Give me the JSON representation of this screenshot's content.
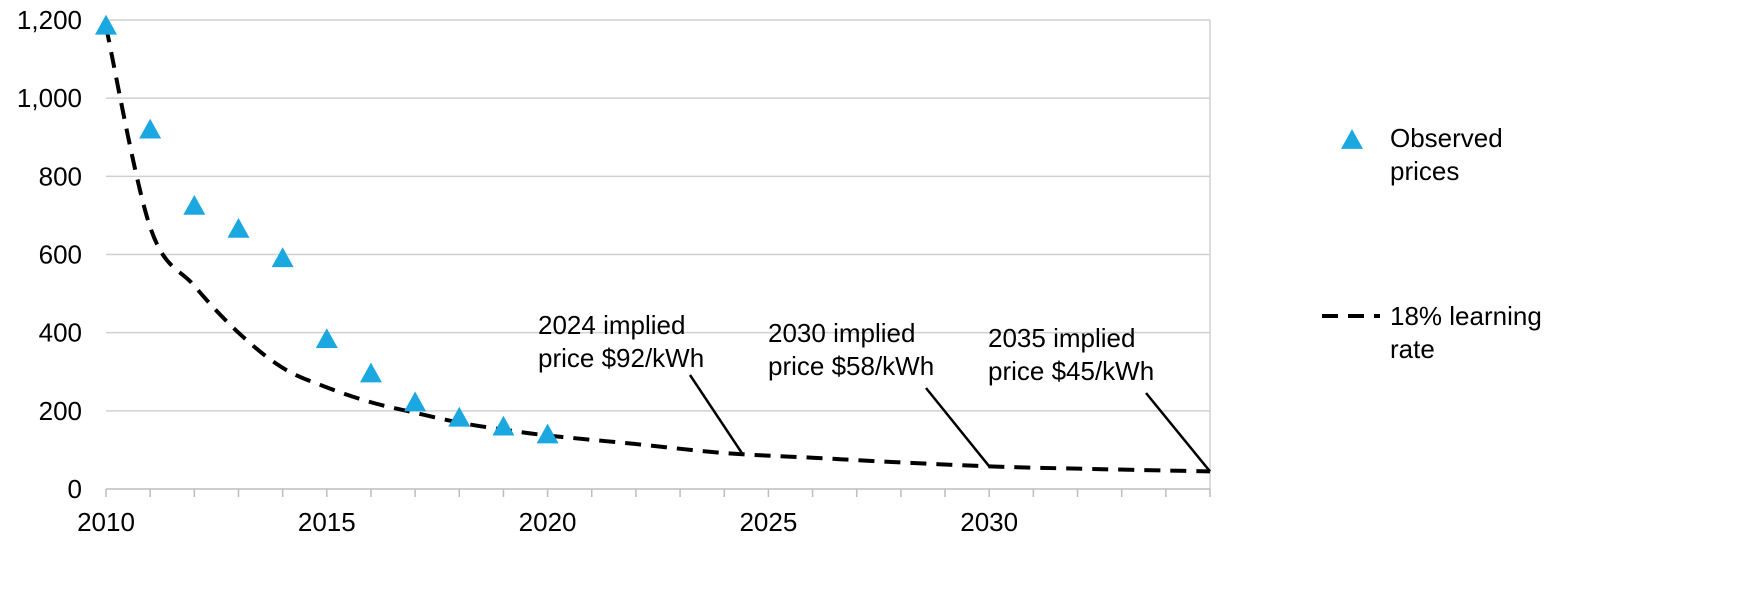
{
  "chart_data": {
    "type": "scatter",
    "xlim": [
      2010,
      2035
    ],
    "ylim": [
      0,
      1200
    ],
    "x_ticks": [
      2010,
      2015,
      2020,
      2025,
      2030
    ],
    "x_tick_labels": [
      "2010",
      "2015",
      "2020",
      "2025",
      "2030"
    ],
    "y_ticks": [
      0,
      200,
      400,
      600,
      800,
      1000,
      1200
    ],
    "y_tick_labels": [
      "0",
      "200",
      "400",
      "600",
      "800",
      "1,000",
      "1,200"
    ],
    "grid": "horizontal",
    "legend_placement": "right",
    "series": [
      {
        "name": "Observed prices",
        "legend_lines": [
          "Observed",
          "prices"
        ],
        "marker": "triangle",
        "color": "#1ba8e0",
        "x": [
          2010,
          2011,
          2012,
          2013,
          2014,
          2015,
          2016,
          2017,
          2018,
          2019,
          2020
        ],
        "y": [
          1183,
          917,
          722,
          663,
          588,
          381,
          293,
          219,
          180,
          157,
          137
        ]
      },
      {
        "name": "18% learning rate",
        "legend_lines": [
          "18% learning",
          "rate"
        ],
        "line_style": "dashed",
        "color": "#000000",
        "x": [
          2010,
          2011,
          2012,
          2013,
          2014,
          2015,
          2016,
          2017,
          2018,
          2019,
          2020,
          2022,
          2024,
          2026,
          2028,
          2030,
          2032,
          2035
        ],
        "y": [
          1183,
          670,
          520,
          400,
          310,
          260,
          222,
          195,
          170,
          152,
          137,
          115,
          92,
          80,
          68,
          58,
          52,
          45
        ]
      }
    ],
    "annotations": [
      {
        "lines": [
          "2024 implied",
          "price $92/kWh"
        ],
        "x": 2024.4,
        "y": 92
      },
      {
        "lines": [
          "2030 implied",
          "price $58/kWh"
        ],
        "x": 2030,
        "y": 58
      },
      {
        "lines": [
          "2035 implied",
          "price $45/kWh"
        ],
        "x": 2035,
        "y": 45
      }
    ]
  }
}
